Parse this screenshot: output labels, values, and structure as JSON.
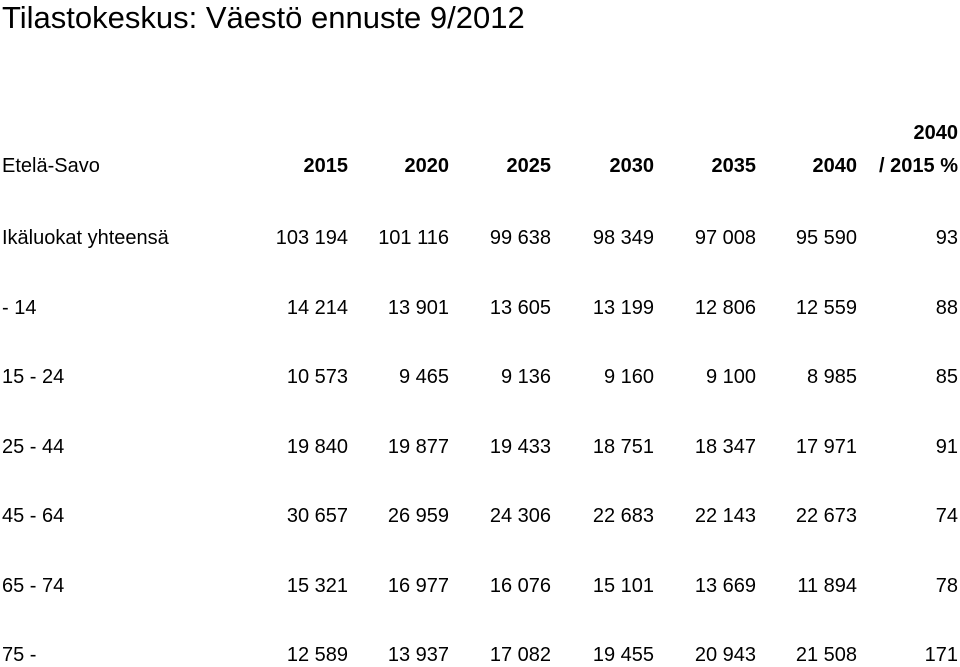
{
  "title": "Tilastokeskus: Väestö ennuste 9/2012",
  "table": {
    "header": [
      "Etelä-Savo",
      "2015",
      "2020",
      "2025",
      "2030",
      "2035",
      "2040",
      [
        "2040",
        "/ 2015 %"
      ]
    ],
    "rows": [
      [
        "Ikäluokat yhteensä",
        "103 194",
        "101 116",
        "99 638",
        "98 349",
        "97 008",
        "95 590",
        "93"
      ],
      [
        "- 14",
        "14 214",
        "13 901",
        "13 605",
        "13 199",
        "12 806",
        "12 559",
        "88"
      ],
      [
        "15 - 24",
        "10 573",
        "9 465",
        "9 136",
        "9 160",
        "9 100",
        "8 985",
        "85"
      ],
      [
        "25 - 44",
        "19 840",
        "19 877",
        "19 433",
        "18 751",
        "18 347",
        "17 971",
        "91"
      ],
      [
        "45 - 64",
        "30 657",
        "26 959",
        "24 306",
        "22 683",
        "22 143",
        "22 673",
        "74"
      ],
      [
        "65 - 74",
        "15 321",
        "16 977",
        "16 076",
        "15 101",
        "13 669",
        "11 894",
        "78"
      ],
      [
        "75 -",
        "12 589",
        "13 937",
        "17 082",
        "19 455",
        "20 943",
        "21 508",
        "171"
      ]
    ]
  }
}
